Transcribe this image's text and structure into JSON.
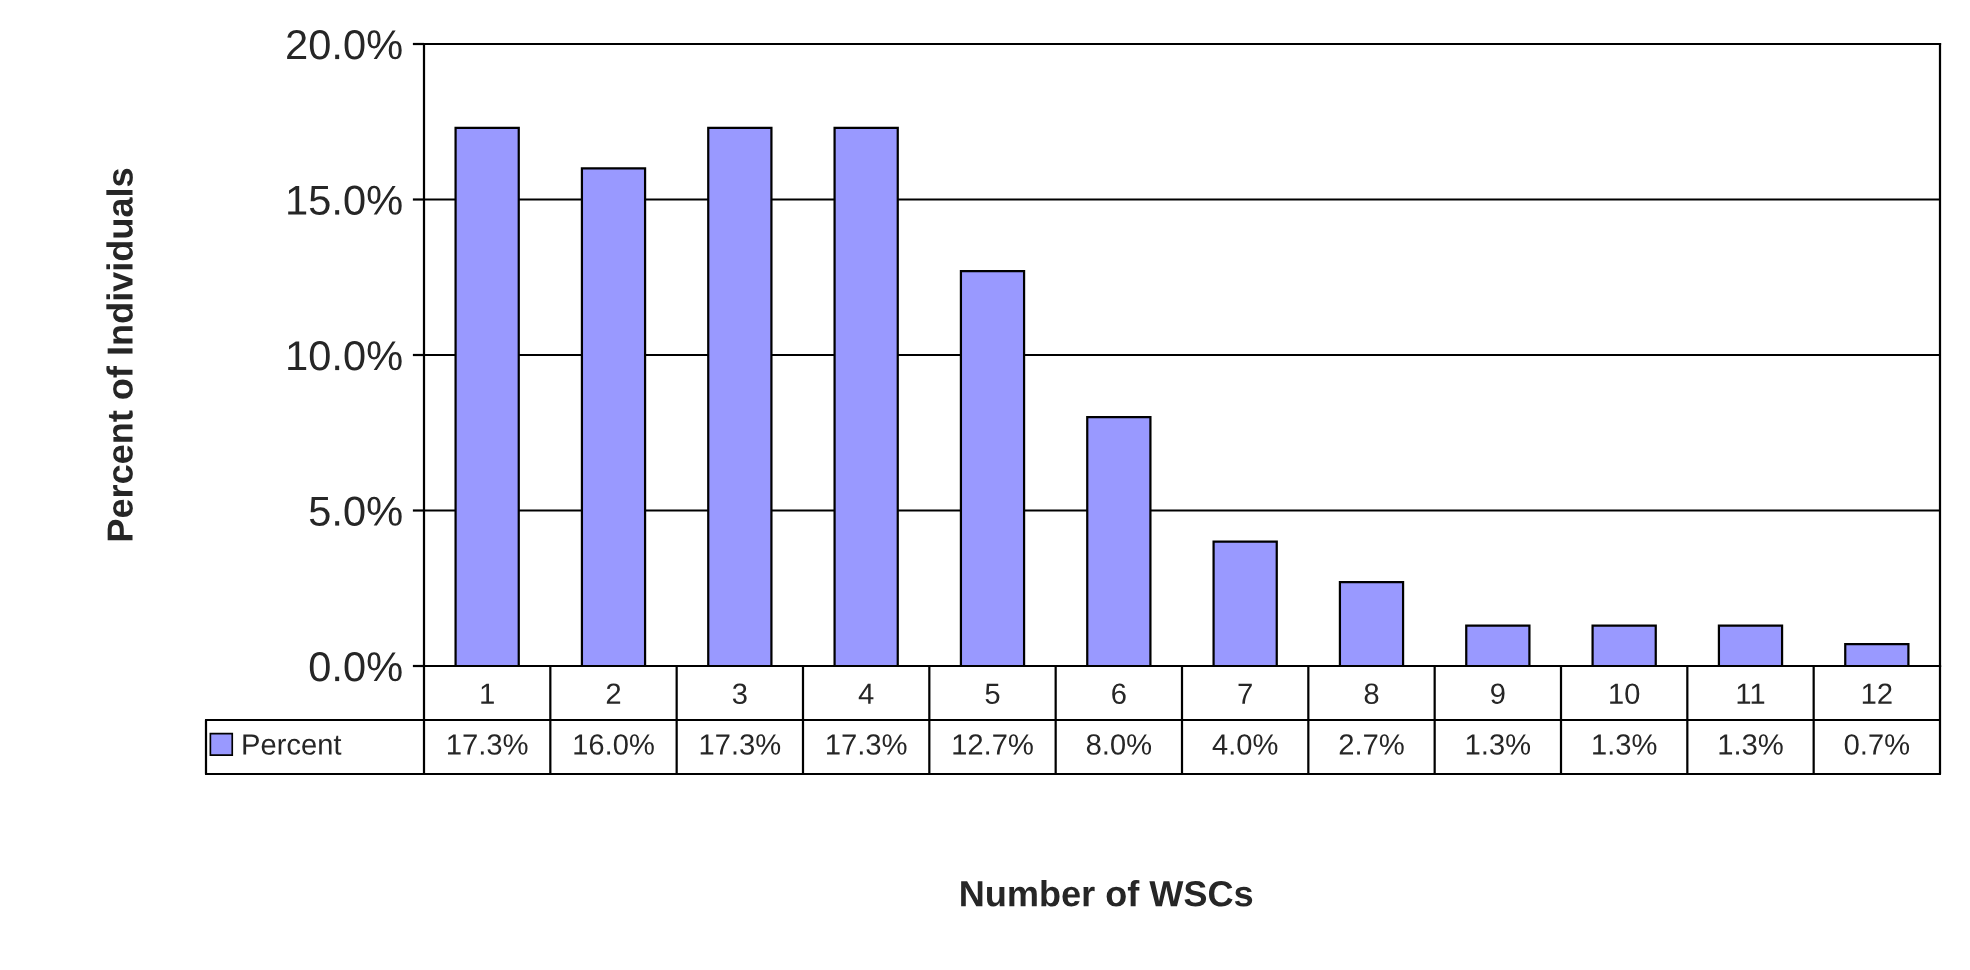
{
  "chart_data": {
    "type": "bar",
    "xlabel": "Number of WSCs",
    "ylabel": "Percent of Individuals",
    "categories": [
      "1",
      "2",
      "3",
      "4",
      "5",
      "6",
      "7",
      "8",
      "9",
      "10",
      "11",
      "12"
    ],
    "series": [
      {
        "name": "Percent",
        "color": "#9999ff",
        "values": [
          17.3,
          16.0,
          17.3,
          17.3,
          12.7,
          8.0,
          4.0,
          2.7,
          1.3,
          1.3,
          1.3,
          0.7
        ],
        "value_labels": [
          "17.3%",
          "16.0%",
          "17.3%",
          "17.3%",
          "12.7%",
          "8.0%",
          "4.0%",
          "2.7%",
          "1.3%",
          "1.3%",
          "1.3%",
          "0.7%"
        ]
      }
    ],
    "ylim": [
      0,
      20
    ],
    "yticks": [
      {
        "value": 0,
        "label": "0.0%"
      },
      {
        "value": 5,
        "label": "5.0%"
      },
      {
        "value": 10,
        "label": "10.0%"
      },
      {
        "value": 15,
        "label": "15.0%"
      },
      {
        "value": 20,
        "label": "20.0%"
      }
    ],
    "grid": "y",
    "legend": "bottom left"
  }
}
